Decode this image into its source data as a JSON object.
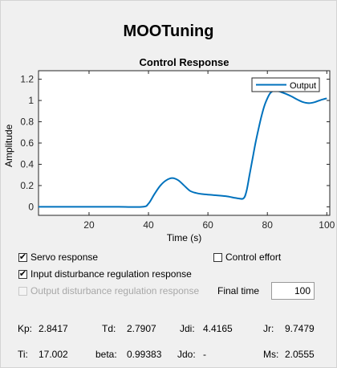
{
  "app": {
    "title": "MOOTuning"
  },
  "chart_data": {
    "type": "line",
    "title": "Control Response",
    "xlabel": "Time (s)",
    "ylabel": "Amplitude",
    "xlim": [
      3,
      101
    ],
    "ylim": [
      -0.08,
      1.28
    ],
    "x_ticks": [
      20,
      40,
      60,
      80,
      100
    ],
    "y_ticks": [
      0,
      0.2,
      0.4,
      0.6,
      0.8,
      1,
      1.2
    ],
    "legend": "top-right",
    "series": [
      {
        "name": "Output",
        "color": "#0072bd",
        "x": [
          3,
          10,
          20,
          30,
          38,
          40,
          42,
          44,
          46,
          48,
          50,
          52,
          54,
          56,
          58,
          62,
          66,
          70,
          72,
          73,
          74,
          75,
          76,
          77,
          78,
          79,
          80,
          81,
          82,
          83,
          84,
          85,
          86,
          88,
          90,
          92,
          94,
          96,
          98,
          100
        ],
        "y": [
          0,
          0,
          0,
          0,
          0,
          0.03,
          0.12,
          0.2,
          0.25,
          0.27,
          0.25,
          0.2,
          0.15,
          0.13,
          0.12,
          0.11,
          0.1,
          0.08,
          0.08,
          0.15,
          0.3,
          0.45,
          0.6,
          0.73,
          0.85,
          0.95,
          1.02,
          1.07,
          1.09,
          1.09,
          1.085,
          1.075,
          1.065,
          1.04,
          1.01,
          0.985,
          0.975,
          0.985,
          1.005,
          1.02
        ]
      }
    ]
  },
  "options": {
    "servo": {
      "label": "Servo response",
      "checked": "✔"
    },
    "control_effort": {
      "label": "Control effort",
      "checked": ""
    },
    "input_disturbance": {
      "label": "Input disturbance regulation response",
      "checked": "✔"
    },
    "output_disturbance": {
      "label": "Output disturbance regulation response",
      "checked": ""
    },
    "final_time": {
      "label": "Final time",
      "value": "100"
    }
  },
  "params": {
    "kp": {
      "label": "Kp:",
      "value": "2.8417"
    },
    "td": {
      "label": "Td:",
      "value": "2.7907"
    },
    "jdi": {
      "label": "Jdi:",
      "value": "4.4165"
    },
    "jr": {
      "label": "Jr:",
      "value": "9.7479"
    },
    "ti": {
      "label": "Ti:",
      "value": "17.002"
    },
    "beta": {
      "label": "beta:",
      "value": "0.99383"
    },
    "jdo": {
      "label": "Jdo:",
      "value": "-"
    },
    "ms": {
      "label": "Ms:",
      "value": "2.0555"
    }
  }
}
